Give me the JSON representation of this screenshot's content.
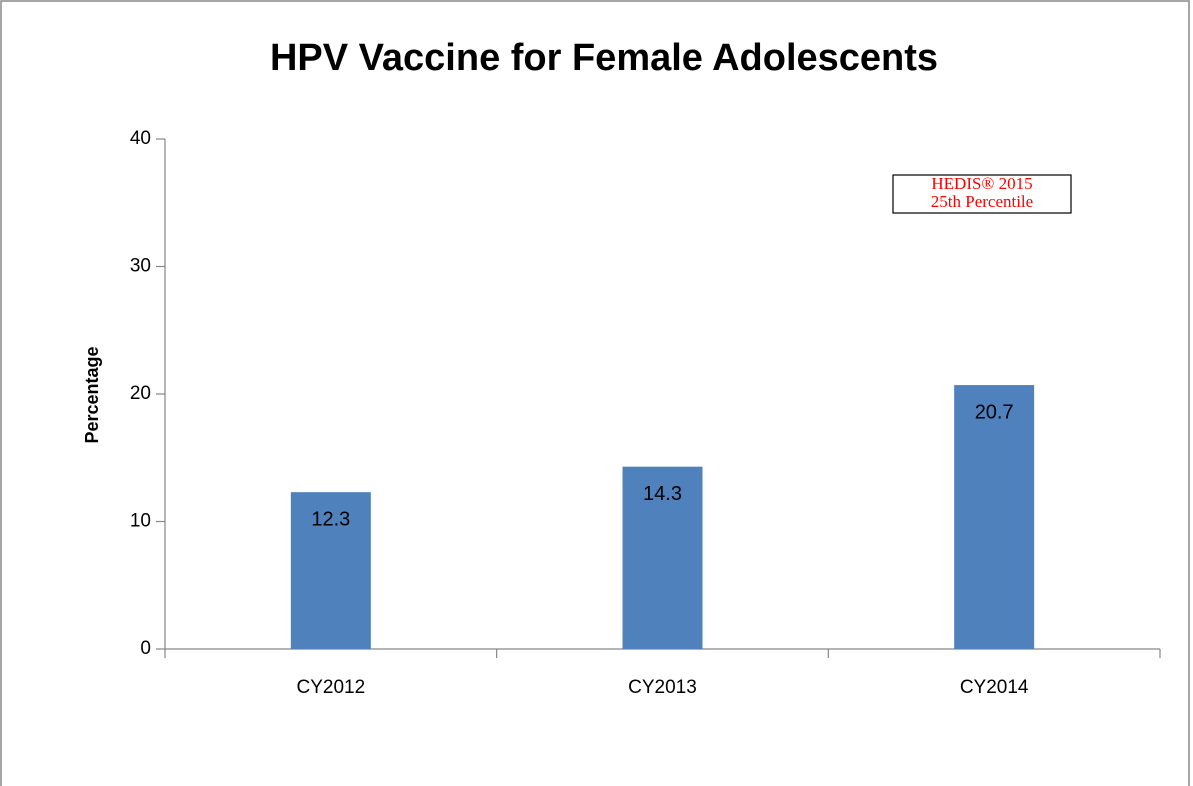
{
  "chart_data": {
    "type": "bar",
    "title": "HPV Vaccine for Female Adolescents",
    "y_label": "Percentage",
    "categories": [
      "CY2012",
      "CY2013",
      "CY2014"
    ],
    "values": [
      12.3,
      14.3,
      20.7
    ],
    "color": "#4f81bd",
    "ylim": [
      0,
      40
    ],
    "yticks": [
      0,
      10,
      20,
      30,
      40
    ],
    "grid": false,
    "annotation": [
      "HEDIS® 2015",
      "25th Percentile"
    ],
    "annotation_color": "#ff0000"
  }
}
